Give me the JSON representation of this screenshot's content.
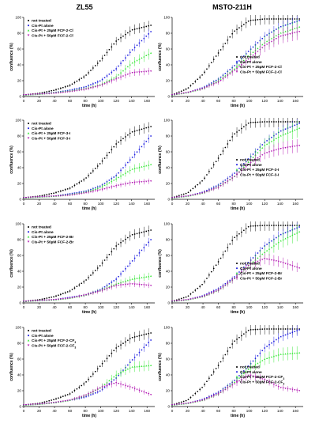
{
  "figure": {
    "column_titles": [
      "ZL55",
      "MSTO-211H"
    ],
    "series_colors": {
      "not_treated": "#000000",
      "cis_pt": "#1f1fe0",
      "low": "#2ee62e",
      "high": "#b012b0"
    }
  },
  "chart_data": [
    {
      "type": "line",
      "panel": "ZL55 FCF-2-Cl",
      "xlabel": "time (h)",
      "ylabel": "confluence (%)",
      "xlim": [
        0,
        170
      ],
      "ylim": [
        0,
        100
      ],
      "xticks": [
        0,
        20,
        40,
        60,
        80,
        100,
        120,
        140,
        160
      ],
      "yticks": [
        0,
        20,
        40,
        60,
        80,
        100
      ],
      "legend_position": "top-left",
      "x": [
        0,
        20,
        40,
        60,
        80,
        100,
        120,
        140,
        165
      ],
      "series": [
        {
          "name": "not treated",
          "values": [
            2,
            4,
            8,
            14,
            26,
            46,
            70,
            84,
            90
          ]
        },
        {
          "name": "Cis-Pt alone",
          "values": [
            2,
            3,
            5,
            8,
            12,
            20,
            35,
            58,
            82
          ]
        },
        {
          "name": "Cis-Pt + 25µM FCF-2-Cl",
          "values": [
            2,
            3,
            5,
            7,
            10,
            15,
            25,
            42,
            55
          ]
        },
        {
          "name": "Cis-Pt + 50µM FCF-2-Cl",
          "values": [
            2,
            3,
            4,
            6,
            9,
            14,
            22,
            30,
            32
          ]
        }
      ]
    },
    {
      "type": "line",
      "panel": "MSTO-211H FCF-2-Cl",
      "xlabel": "time (h)",
      "ylabel": "confluence (%)",
      "xlim": [
        0,
        170
      ],
      "ylim": [
        0,
        100
      ],
      "xticks": [
        0,
        20,
        40,
        60,
        80,
        100,
        120,
        140,
        160
      ],
      "yticks": [
        0,
        20,
        40,
        60,
        80,
        100
      ],
      "legend_position": "bottom-right",
      "x": [
        0,
        20,
        40,
        60,
        80,
        100,
        120,
        140,
        165
      ],
      "series": [
        {
          "name": "not treated",
          "values": [
            2,
            10,
            28,
            55,
            82,
            96,
            98,
            98,
            98
          ]
        },
        {
          "name": "Cis-Pt alone",
          "values": [
            2,
            5,
            11,
            22,
            38,
            58,
            76,
            88,
            96
          ]
        },
        {
          "name": "Cis-Pt + 25µM FCF-2-Cl",
          "values": [
            2,
            5,
            10,
            20,
            34,
            52,
            68,
            80,
            88
          ]
        },
        {
          "name": "Cis-Pt + 50µM FCF-2-Cl",
          "values": [
            2,
            5,
            10,
            18,
            32,
            48,
            64,
            76,
            82
          ]
        }
      ]
    },
    {
      "type": "line",
      "panel": "ZL55 FCF-3-I",
      "xlabel": "time (h)",
      "ylabel": "confluence (%)",
      "xlim": [
        0,
        170
      ],
      "ylim": [
        0,
        100
      ],
      "xticks": [
        0,
        20,
        40,
        60,
        80,
        100,
        120,
        140,
        160
      ],
      "yticks": [
        0,
        20,
        40,
        60,
        80,
        100
      ],
      "legend_position": "top-left",
      "x": [
        0,
        20,
        40,
        60,
        80,
        100,
        120,
        140,
        165
      ],
      "series": [
        {
          "name": "not treated",
          "values": [
            2,
            4,
            8,
            14,
            26,
            46,
            70,
            85,
            92
          ]
        },
        {
          "name": "Cis-Pt alone",
          "values": [
            2,
            3,
            4,
            7,
            10,
            17,
            30,
            52,
            80
          ]
        },
        {
          "name": "Cis-Pt + 25µM FCF-3-I",
          "values": [
            2,
            3,
            4,
            6,
            9,
            15,
            26,
            38,
            44
          ]
        },
        {
          "name": "Cis-Pt + 50µM FCF-3-I",
          "values": [
            2,
            3,
            4,
            5,
            8,
            12,
            17,
            21,
            23
          ]
        }
      ]
    },
    {
      "type": "line",
      "panel": "MSTO-211H FCF-3-I",
      "xlabel": "time (h)",
      "ylabel": "confluence (%)",
      "xlim": [
        0,
        170
      ],
      "ylim": [
        0,
        100
      ],
      "xticks": [
        0,
        20,
        40,
        60,
        80,
        100,
        120,
        140,
        160
      ],
      "yticks": [
        0,
        20,
        40,
        60,
        80,
        100
      ],
      "legend_position": "bottom-right",
      "x": [
        0,
        20,
        40,
        60,
        80,
        100,
        120,
        140,
        165
      ],
      "series": [
        {
          "name": "not treated",
          "values": [
            2,
            8,
            24,
            52,
            82,
            97,
            98,
            98,
            98
          ]
        },
        {
          "name": "Cis-Pt alone",
          "values": [
            2,
            4,
            9,
            18,
            32,
            52,
            72,
            86,
            96
          ]
        },
        {
          "name": "Cis-Pt + 25µM FCF-3-I",
          "values": [
            2,
            4,
            8,
            16,
            28,
            48,
            68,
            80,
            90
          ]
        },
        {
          "name": "Cis-Pt + 50µM FCF-3-I",
          "values": [
            2,
            4,
            8,
            15,
            28,
            45,
            58,
            64,
            68
          ]
        }
      ]
    },
    {
      "type": "line",
      "panel": "ZL55 FCF-2-Br",
      "xlabel": "time (h)",
      "ylabel": "confluence (%)",
      "xlim": [
        0,
        170
      ],
      "ylim": [
        0,
        100
      ],
      "xticks": [
        0,
        20,
        40,
        60,
        80,
        100,
        120,
        140,
        160
      ],
      "yticks": [
        0,
        20,
        40,
        60,
        80,
        100
      ],
      "legend_position": "top-left",
      "x": [
        0,
        20,
        40,
        60,
        80,
        100,
        120,
        140,
        165
      ],
      "series": [
        {
          "name": "not treated",
          "values": [
            2,
            4,
            8,
            15,
            28,
            48,
            72,
            86,
            92
          ]
        },
        {
          "name": "Cis-Pt alone",
          "values": [
            2,
            3,
            4,
            7,
            10,
            17,
            30,
            52,
            80
          ]
        },
        {
          "name": "Cis-Pt + 25µM FCF-2-Br",
          "values": [
            2,
            3,
            4,
            6,
            10,
            16,
            24,
            30,
            34
          ]
        },
        {
          "name": "Cis-Pt + 50µM FCF-2-Br",
          "values": [
            2,
            3,
            4,
            6,
            10,
            15,
            22,
            24,
            22
          ]
        }
      ]
    },
    {
      "type": "line",
      "panel": "MSTO-211H FCF-2-Br",
      "xlabel": "time (h)",
      "ylabel": "confluence (%)",
      "xlim": [
        0,
        170
      ],
      "ylim": [
        0,
        100
      ],
      "xticks": [
        0,
        20,
        40,
        60,
        80,
        100,
        120,
        140,
        160
      ],
      "yticks": [
        0,
        20,
        40,
        60,
        80,
        100
      ],
      "legend_position": "bottom-right",
      "x": [
        0,
        20,
        40,
        60,
        80,
        100,
        120,
        140,
        165
      ],
      "series": [
        {
          "name": "not treated",
          "values": [
            2,
            8,
            24,
            52,
            82,
            97,
            98,
            98,
            98
          ]
        },
        {
          "name": "Cis-Pt alone",
          "values": [
            2,
            4,
            9,
            18,
            32,
            52,
            72,
            86,
            96
          ]
        },
        {
          "name": "Cis-Pt + 25µM FCF-2-Br",
          "values": [
            2,
            4,
            8,
            16,
            30,
            48,
            64,
            78,
            90
          ]
        },
        {
          "name": "Cis-Pt + 50µM FCF-2-Br",
          "values": [
            2,
            4,
            8,
            16,
            30,
            48,
            56,
            52,
            44
          ]
        }
      ]
    },
    {
      "type": "line",
      "panel": "ZL55 FCF-2-CF3",
      "xlabel": "time (h)",
      "ylabel": "confluence (%)",
      "xlim": [
        0,
        170
      ],
      "ylim": [
        0,
        100
      ],
      "xticks": [
        0,
        20,
        40,
        60,
        80,
        100,
        120,
        140,
        160
      ],
      "yticks": [
        0,
        20,
        40,
        60,
        80,
        100
      ],
      "legend_position": "top-left",
      "x": [
        0,
        20,
        40,
        60,
        80,
        100,
        120,
        140,
        165
      ],
      "series": [
        {
          "name": "not treated",
          "values": [
            2,
            4,
            9,
            16,
            30,
            52,
            74,
            87,
            93
          ]
        },
        {
          "name": "Cis-Pt alone",
          "values": [
            2,
            3,
            5,
            8,
            12,
            20,
            36,
            58,
            84
          ]
        },
        {
          "name": "Cis-Pt + 25µM FCF-2-CF3",
          "values": [
            2,
            3,
            5,
            8,
            14,
            24,
            40,
            50,
            52
          ]
        },
        {
          "name": "Cis-Pt + 50µM FCF-2-CF3",
          "values": [
            2,
            3,
            5,
            8,
            14,
            24,
            30,
            24,
            15
          ]
        }
      ]
    },
    {
      "type": "line",
      "panel": "MSTO-211H FCF-2-CF3",
      "xlabel": "time (h)",
      "ylabel": "confluence (%)",
      "xlim": [
        0,
        170
      ],
      "ylim": [
        0,
        100
      ],
      "xticks": [
        0,
        20,
        40,
        60,
        80,
        100,
        120,
        140,
        160
      ],
      "yticks": [
        0,
        20,
        40,
        60,
        80,
        100
      ],
      "legend_position": "bottom-right",
      "x": [
        0,
        20,
        40,
        60,
        80,
        100,
        120,
        140,
        165
      ],
      "series": [
        {
          "name": "not treated",
          "values": [
            2,
            8,
            25,
            52,
            82,
            97,
            98,
            98,
            98
          ]
        },
        {
          "name": "Cis-Pt alone",
          "values": [
            2,
            4,
            9,
            18,
            32,
            52,
            74,
            88,
            97
          ]
        },
        {
          "name": "Cis-Pt + 25µM FCF-2-CF3",
          "values": [
            2,
            4,
            8,
            16,
            30,
            48,
            60,
            66,
            68
          ]
        },
        {
          "name": "Cis-Pt + 50µM FCF-2-CF3",
          "values": [
            2,
            4,
            8,
            16,
            28,
            40,
            34,
            24,
            20
          ]
        }
      ]
    }
  ]
}
